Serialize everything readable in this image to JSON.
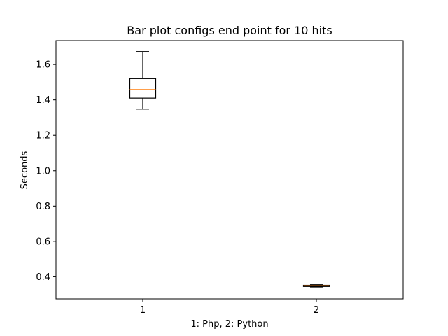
{
  "chart_data": {
    "type": "box",
    "title": "Bar plot configs end point for 10 hits",
    "xlabel": "1: Php, 2: Python",
    "ylabel": "Seconds",
    "ylim": [
      0.275,
      1.735
    ],
    "yticks": [
      0.4,
      0.6,
      0.8,
      1.0,
      1.2,
      1.4,
      1.6
    ],
    "ytick_labels": [
      "0.4",
      "0.6",
      "0.8",
      "1.0",
      "1.2",
      "1.4",
      "1.6"
    ],
    "xlim": [
      0.5,
      2.5
    ],
    "categories": [
      "1",
      "2"
    ],
    "boxes": [
      {
        "position": 1,
        "whisker_low": 1.348,
        "q1": 1.41,
        "median": 1.458,
        "q3": 1.52,
        "whisker_high": 1.673
      },
      {
        "position": 2,
        "whisker_low": 0.342,
        "q1": 0.345,
        "median": 0.349,
        "q3": 0.352,
        "whisker_high": 0.355
      }
    ],
    "grid": false,
    "colors": {
      "box": "#000000",
      "median": "#ff7f0e",
      "axes": "#000000"
    }
  }
}
